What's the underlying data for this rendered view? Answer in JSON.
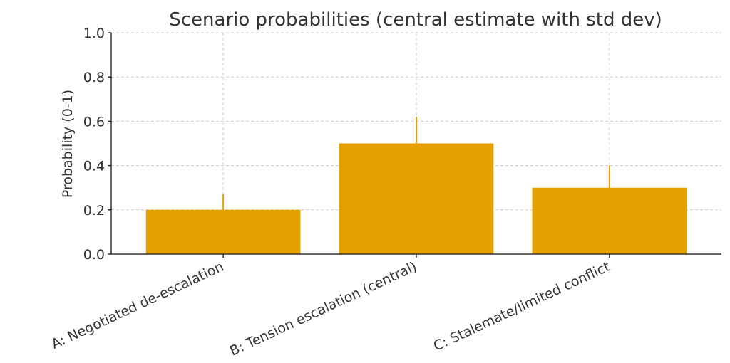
{
  "chart_data": {
    "type": "bar",
    "title": "Scenario probabilities (central estimate with std dev)",
    "xlabel": "",
    "ylabel": "Probability (0-1)",
    "ylim": [
      0,
      1
    ],
    "yticks": [
      0.0,
      0.2,
      0.4,
      0.6,
      0.8,
      1.0
    ],
    "ytick_labels": [
      "0.0",
      "0.2",
      "0.4",
      "0.6",
      "0.8",
      "1.0"
    ],
    "grid": true,
    "categories": [
      "A: Negotiated de-escalation",
      "B: Tension escalation (central)",
      "C: Stalemate/limited conflict"
    ],
    "values": [
      0.2,
      0.5,
      0.3
    ],
    "errors": [
      0.07,
      0.12,
      0.1
    ],
    "bar_color": "#E69F00",
    "error_color": "#E69F00"
  }
}
